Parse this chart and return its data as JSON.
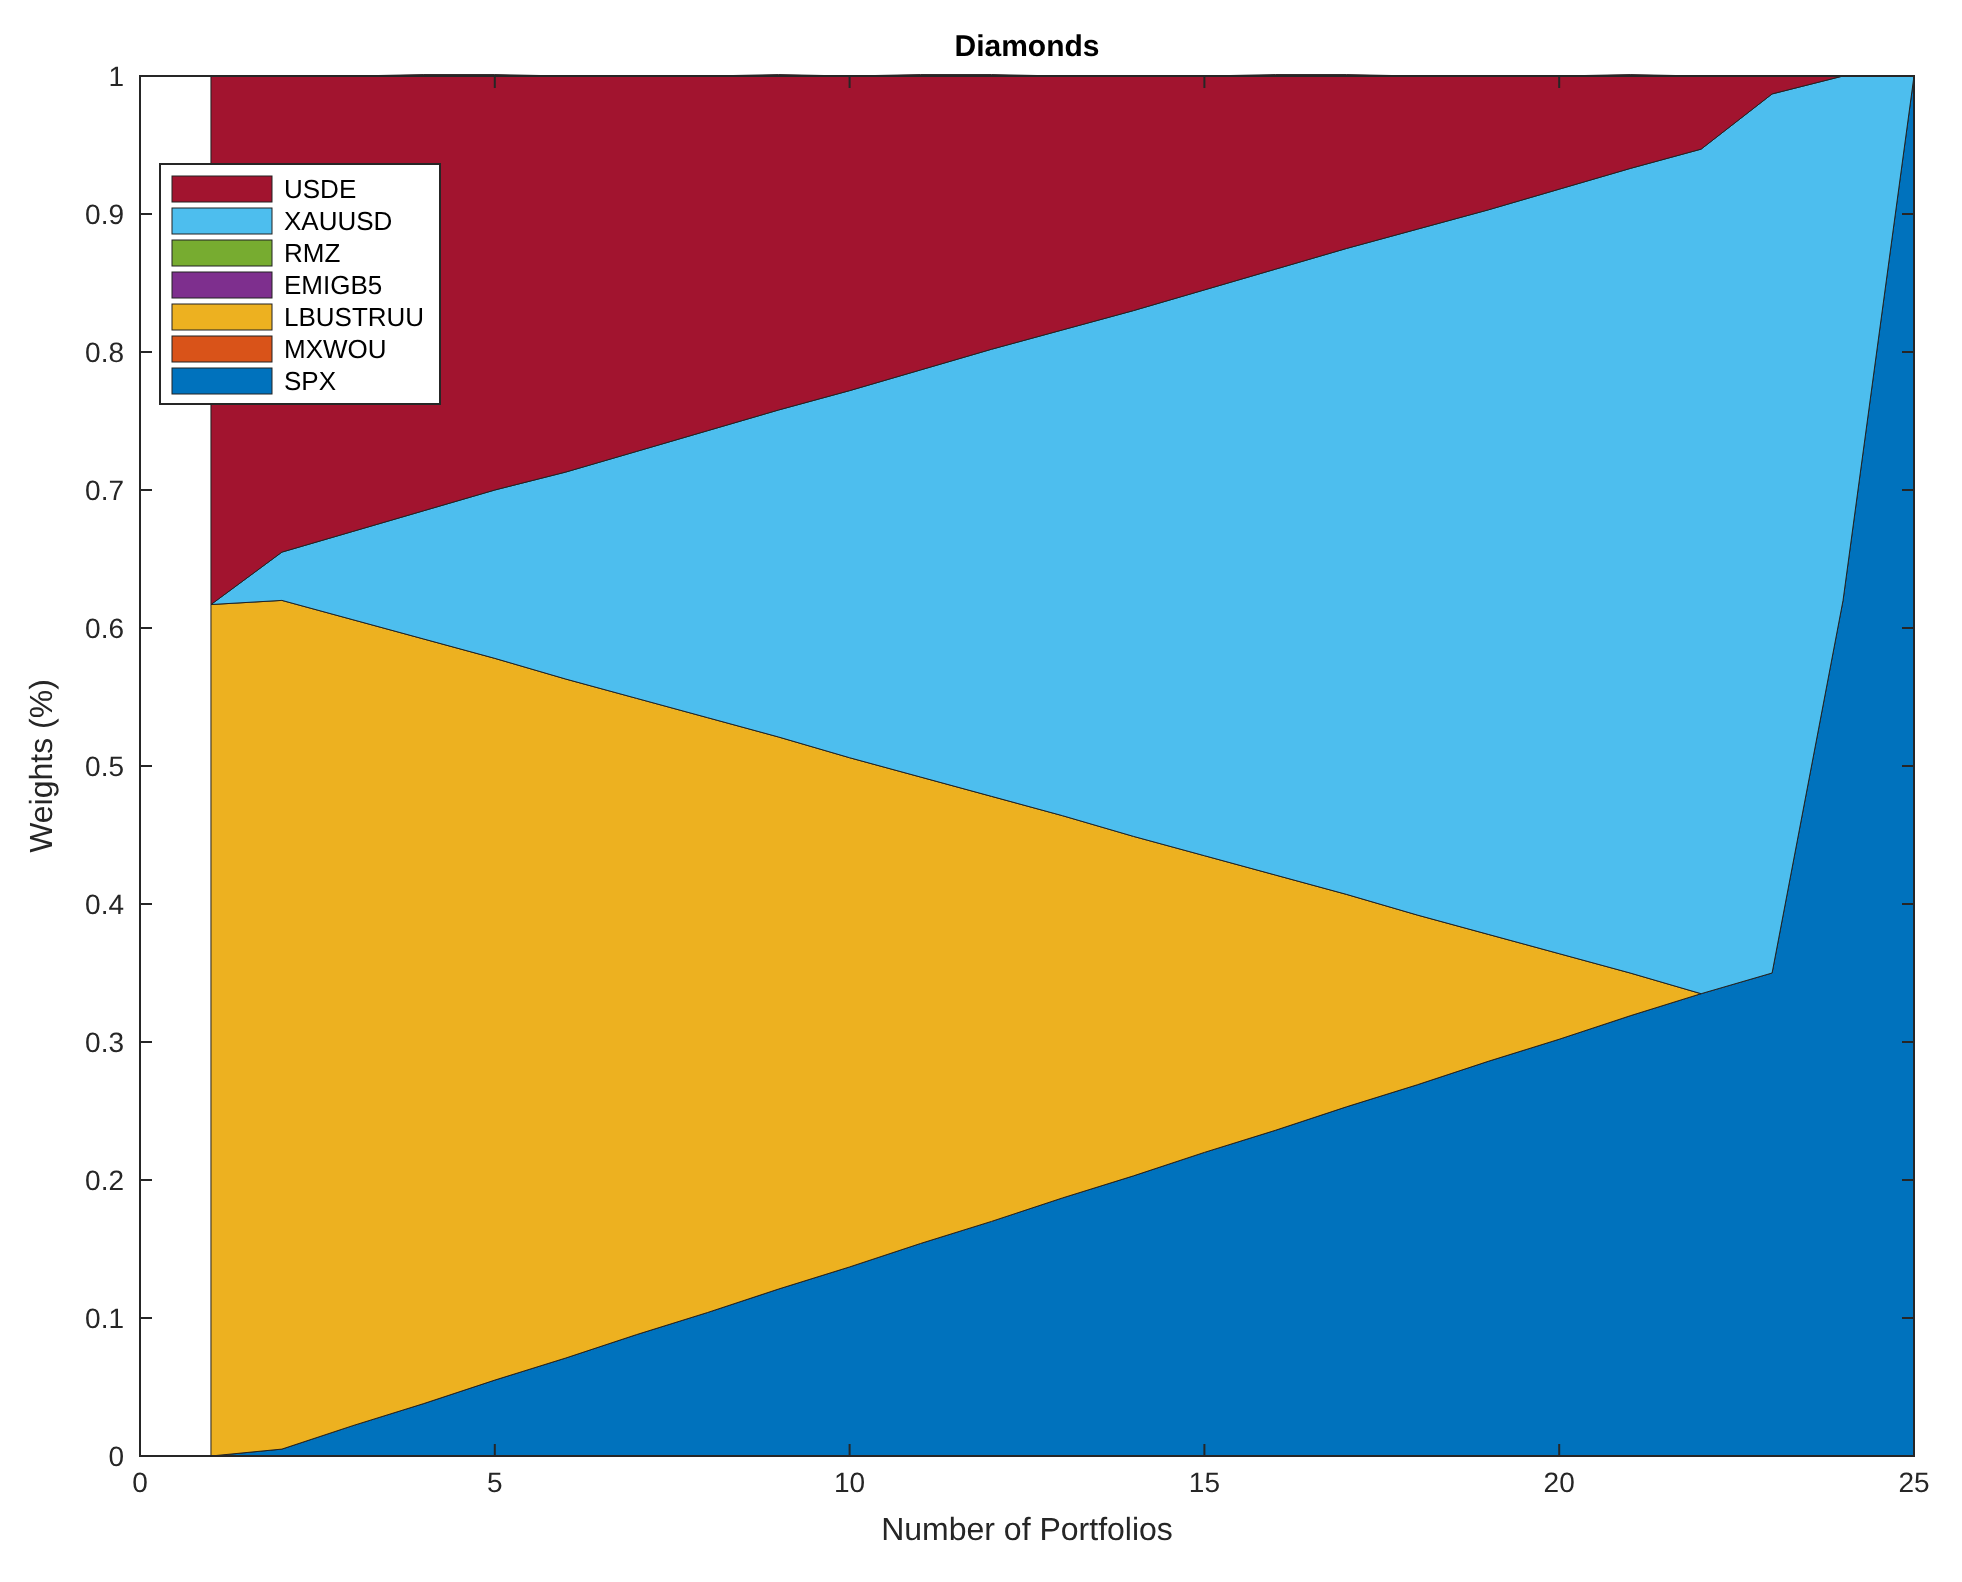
{
  "chart_data": {
    "type": "area",
    "title": "Diamonds",
    "xlabel": "Number of Portfolios",
    "ylabel": "Weights (%)",
    "stacked": true,
    "legend": "top left",
    "xlim": [
      0,
      25
    ],
    "xticks": [
      0,
      5,
      10,
      15,
      20,
      25
    ],
    "ylim": [
      0,
      1
    ],
    "yticks": [
      0,
      0.1,
      0.2,
      0.3,
      0.4,
      0.5,
      0.6,
      0.7,
      0.8,
      0.9,
      1
    ],
    "x": [
      1,
      2,
      3,
      4,
      5,
      6,
      7,
      8,
      9,
      10,
      11,
      12,
      13,
      14,
      15,
      16,
      17,
      18,
      19,
      20,
      21,
      22,
      23,
      24,
      25
    ],
    "series": [
      {
        "name": "SPX",
        "color": "#0072bd",
        "values": [
          0,
          0.005,
          0.022,
          0.038,
          0.055,
          0.071,
          0.088,
          0.104,
          0.121,
          0.137,
          0.154,
          0.17,
          0.187,
          0.203,
          0.22,
          0.236,
          0.253,
          0.269,
          0.286,
          0.302,
          0.319,
          0.335,
          0.35,
          0.62,
          1
        ]
      },
      {
        "name": "MXWOU",
        "color": "#d95319",
        "values": [
          null,
          null,
          null,
          null,
          null,
          null,
          null,
          null,
          null,
          null,
          null,
          null,
          null,
          null,
          null,
          null,
          null,
          null,
          null,
          null,
          null,
          null,
          null,
          null,
          null
        ]
      },
      {
        "name": "LBUSTRUU",
        "color": "#edb120",
        "values": [
          0.617,
          0.615,
          0.584,
          0.554,
          0.523,
          0.492,
          0.461,
          0.431,
          0.4,
          0.369,
          0.338,
          0.308,
          0.277,
          0.246,
          0.215,
          0.185,
          0.154,
          0.123,
          0.092,
          0.062,
          0.031,
          0,
          null,
          null,
          null
        ]
      },
      {
        "name": "EMIGB5",
        "color": "#7e2f8e",
        "values": [
          null,
          null,
          null,
          null,
          null,
          null,
          null,
          null,
          null,
          null,
          null,
          null,
          null,
          null,
          null,
          null,
          null,
          null,
          null,
          null,
          null,
          null,
          null,
          null,
          null
        ]
      },
      {
        "name": "RMZ",
        "color": "#77ac30",
        "values": [
          null,
          null,
          null,
          null,
          null,
          null,
          null,
          null,
          null,
          null,
          null,
          null,
          null,
          null,
          null,
          null,
          null,
          null,
          null,
          null,
          null,
          null,
          null,
          null,
          null
        ]
      },
      {
        "name": "XAUUSD",
        "color": "#4dbeee",
        "values": [
          0,
          0.035,
          0.064,
          0.093,
          0.122,
          0.15,
          0.179,
          0.208,
          0.237,
          0.266,
          0.295,
          0.324,
          0.352,
          0.381,
          0.41,
          0.439,
          0.468,
          0.497,
          0.525,
          0.554,
          0.583,
          0.612,
          0.637,
          0.38,
          0
        ]
      },
      {
        "name": "USDE",
        "color": "#a2142f",
        "values": [
          0.383,
          0.345,
          0.33,
          0.316,
          0.301,
          0.287,
          0.272,
          0.257,
          0.243,
          0.228,
          0.214,
          0.199,
          0.184,
          0.17,
          0.155,
          0.141,
          0.126,
          0.111,
          0.097,
          0.082,
          0.068,
          0.053,
          0.013,
          0,
          0
        ]
      }
    ]
  }
}
